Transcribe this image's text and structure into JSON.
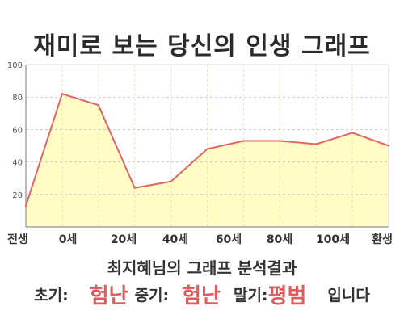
{
  "title": "재미로 보는 당신의 인생 그래프",
  "chart_data": {
    "type": "area",
    "title": "재미로 보는 당신의 인생 그래프",
    "xlabel": "",
    "ylabel": "",
    "ylim": [
      0,
      100
    ],
    "y_ticks": [
      20,
      40,
      60,
      80,
      100
    ],
    "x_tick_labels": [
      "전생",
      "0세",
      "20세",
      "40세",
      "60세",
      "80세",
      "100세",
      "환생"
    ],
    "grid": true,
    "legend": "none",
    "line_color": "#e06666",
    "fill_color": "#fffcc4",
    "values": [
      13,
      82,
      75,
      24,
      28,
      48,
      53,
      53,
      51,
      58,
      50
    ]
  },
  "summary": {
    "heading": "최지혜님의 그래프 분석결과",
    "early_label": "초기:",
    "early_value": "험난",
    "middle_label": "중기:",
    "middle_value": "험난",
    "late_label": "말기:",
    "late_value": "평범",
    "suffix": "입니다"
  },
  "colors": {
    "accent": "#e25b5b",
    "plot_background": "#fffcc4"
  }
}
